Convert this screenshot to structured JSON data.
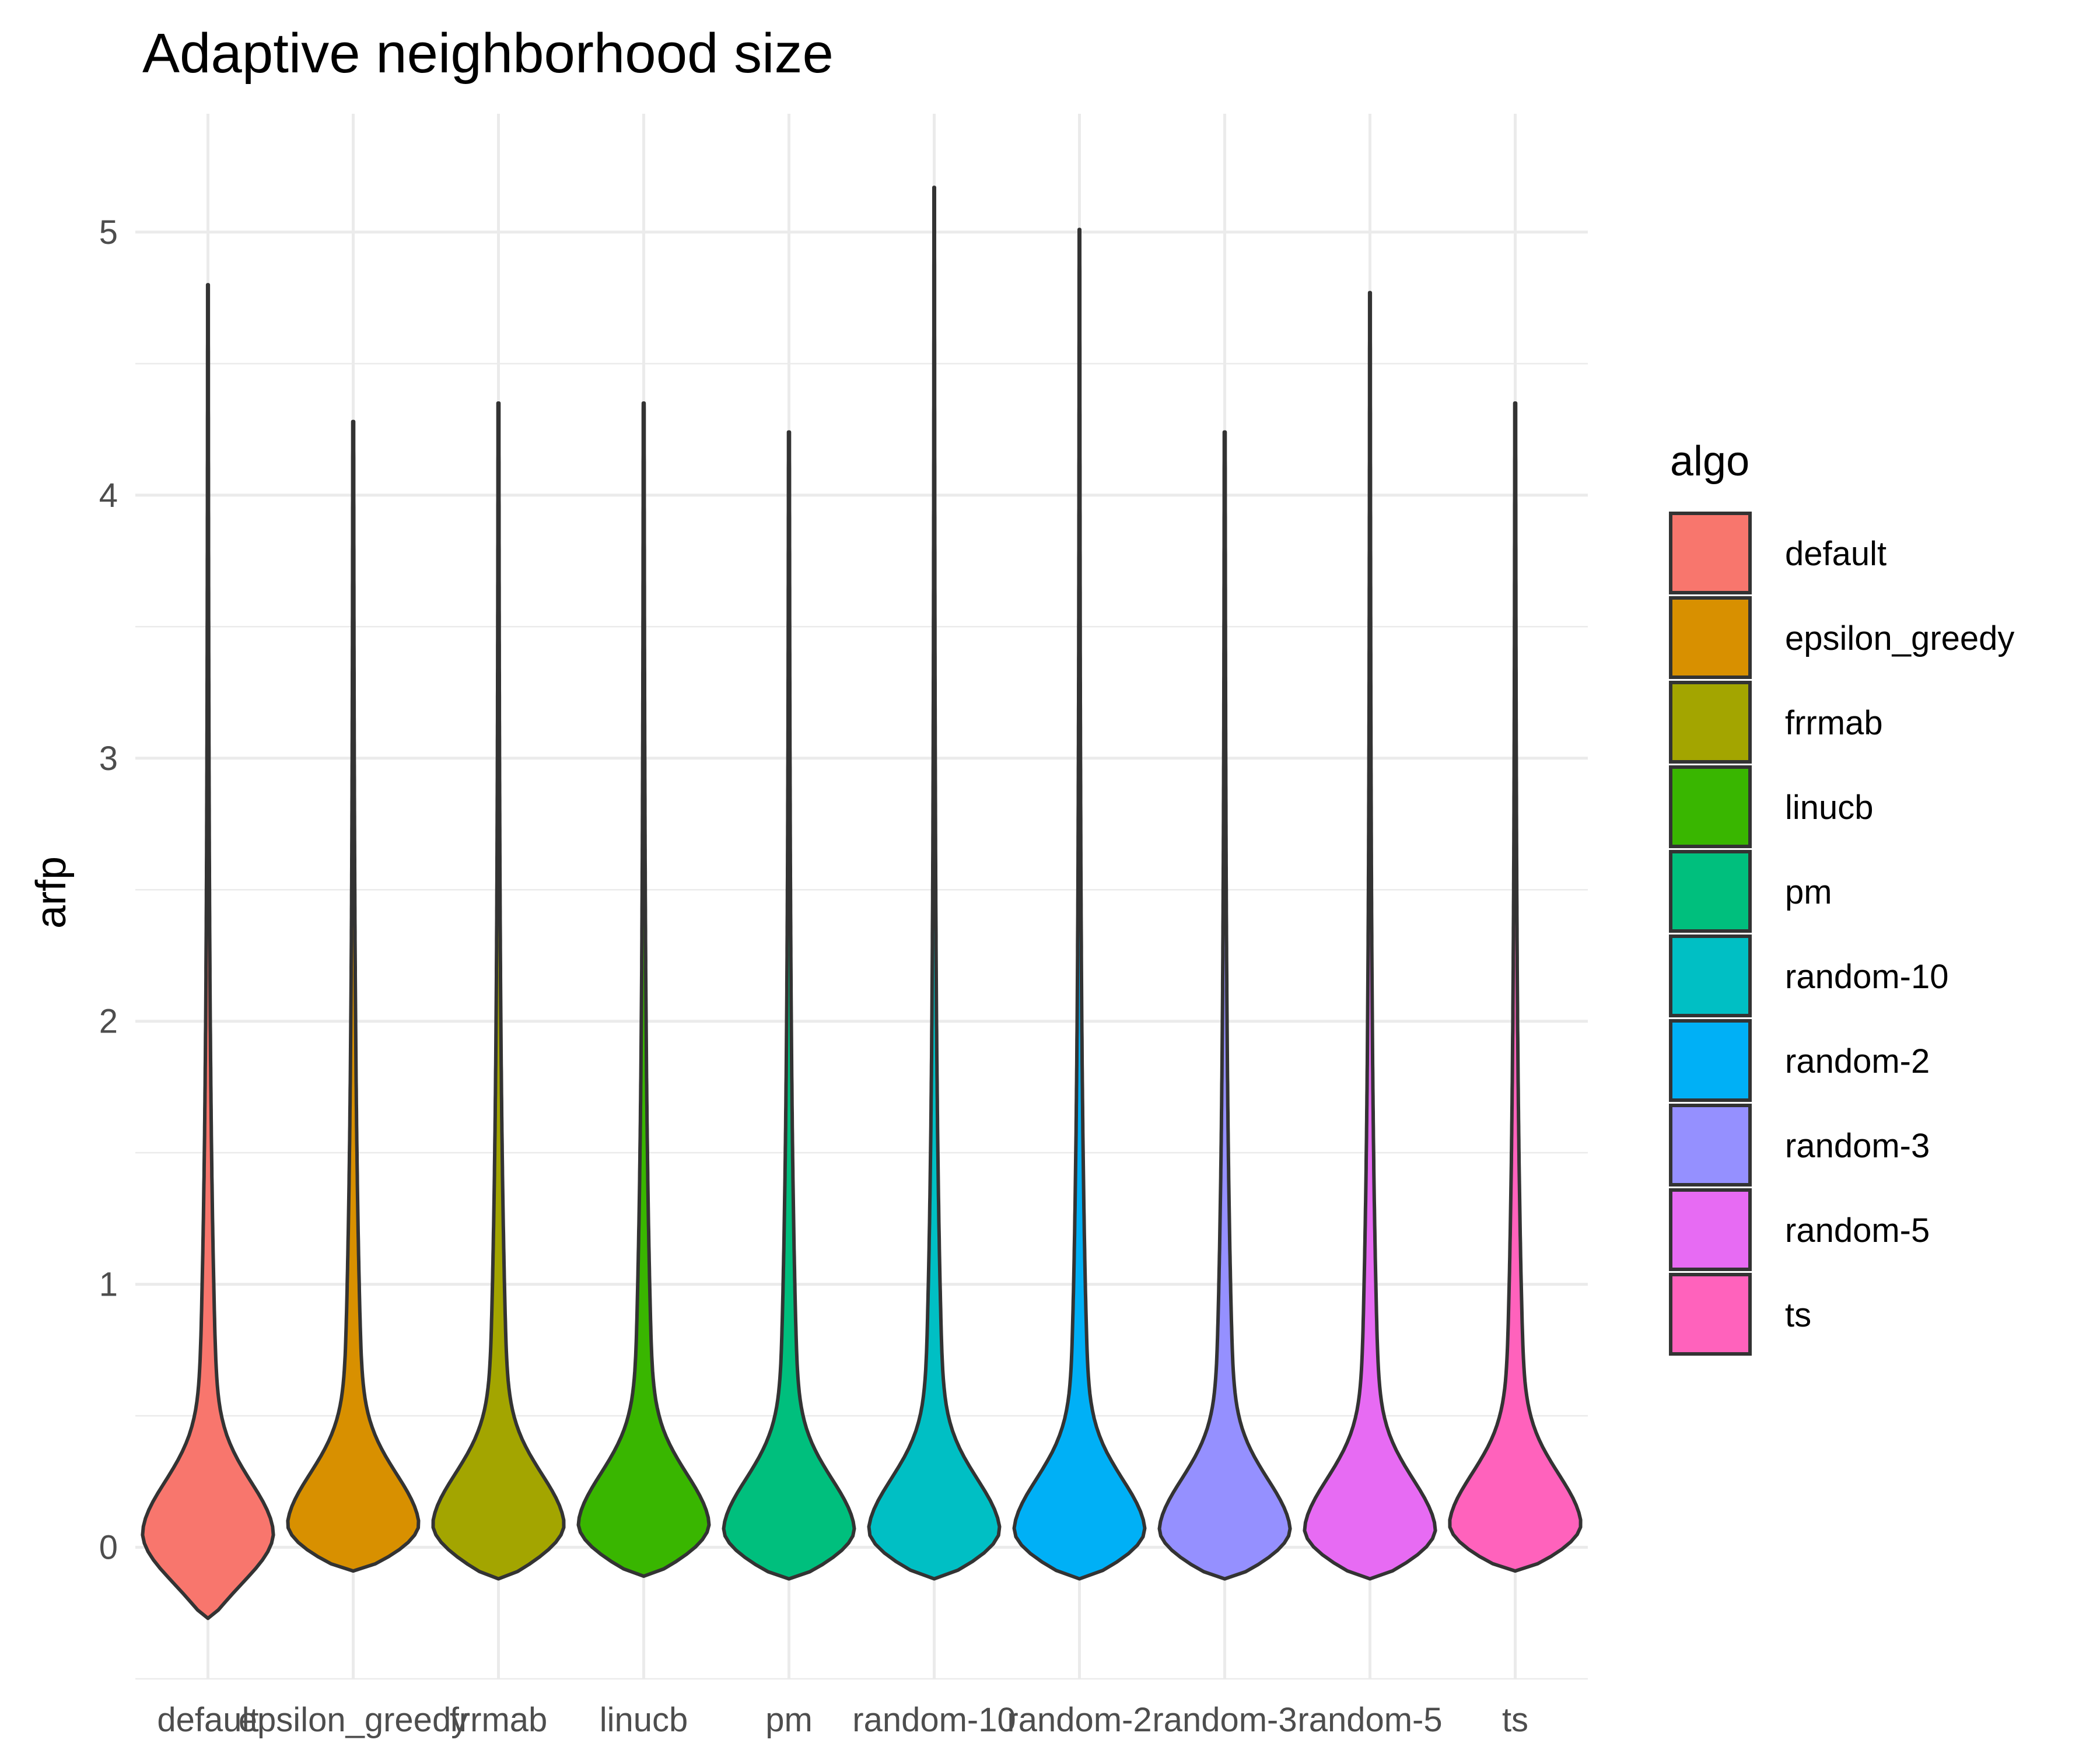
{
  "chart_data": {
    "type": "violin",
    "title": "Adaptive neighborhood size",
    "xlabel": "",
    "ylabel": "arfp",
    "ylim": [
      -0.5,
      5.45
    ],
    "y_ticks": [
      0,
      1,
      2,
      3,
      4,
      5
    ],
    "grid": true,
    "legend": {
      "title": "algo",
      "position": "right"
    },
    "categories": [
      "default",
      "epsilon_greedy",
      "frrmab",
      "linucb",
      "pm",
      "random-10",
      "random-2",
      "random-3",
      "random-5",
      "ts"
    ],
    "colors": [
      "#F8766D",
      "#D89000",
      "#A3A500",
      "#39B600",
      "#00BF7D",
      "#00BFC4",
      "#00B0F6",
      "#9590FF",
      "#E76BF3",
      "#FF62BC"
    ],
    "series": [
      {
        "name": "default",
        "min": -0.27,
        "max": 4.8,
        "mode": 0.05,
        "mode_half_width": 0.44,
        "tail": 0.27
      },
      {
        "name": "epsilon_greedy",
        "min": -0.09,
        "max": 4.28,
        "mode": 0.08,
        "mode_half_width": 0.44,
        "tail": 0.21
      },
      {
        "name": "frrmab",
        "min": -0.12,
        "max": 4.35,
        "mode": 0.08,
        "mode_half_width": 0.44,
        "tail": 0.21
      },
      {
        "name": "linucb",
        "min": -0.11,
        "max": 4.35,
        "mode": 0.08,
        "mode_half_width": 0.44,
        "tail": 0.22
      },
      {
        "name": "pm",
        "min": -0.12,
        "max": 4.24,
        "mode": 0.06,
        "mode_half_width": 0.44,
        "tail": 0.22
      },
      {
        "name": "random-10",
        "min": -0.12,
        "max": 5.17,
        "mode": 0.06,
        "mode_half_width": 0.44,
        "tail": 0.21
      },
      {
        "name": "random-2",
        "min": -0.12,
        "max": 5.01,
        "mode": 0.06,
        "mode_half_width": 0.44,
        "tail": 0.22
      },
      {
        "name": "random-3",
        "min": -0.12,
        "max": 4.24,
        "mode": 0.06,
        "mode_half_width": 0.44,
        "tail": 0.22
      },
      {
        "name": "random-5",
        "min": -0.12,
        "max": 4.77,
        "mode": 0.06,
        "mode_half_width": 0.44,
        "tail": 0.21
      },
      {
        "name": "ts",
        "min": -0.09,
        "max": 4.35,
        "mode": 0.08,
        "mode_half_width": 0.44,
        "tail": 0.21
      }
    ]
  }
}
